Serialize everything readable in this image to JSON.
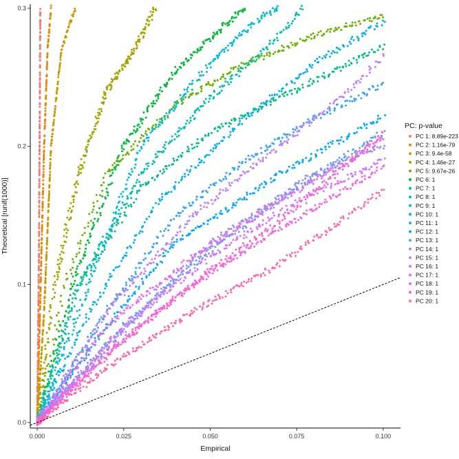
{
  "chart_data": {
    "type": "scatter",
    "xlabel": "Empirical",
    "ylabel": "Theoretical [runif(1000)]",
    "xlim": [
      -0.002,
      0.105
    ],
    "ylim": [
      -0.004,
      0.303
    ],
    "x_ticks": [
      0.0,
      0.025,
      0.05,
      0.075,
      0.1
    ],
    "x_tick_labels": [
      "0.000",
      "0.025",
      "0.050",
      "0.075",
      "0.100"
    ],
    "y_ticks": [
      0.0,
      0.1,
      0.2,
      0.3
    ],
    "y_tick_labels": [
      "0.0",
      "0.1",
      "0.2",
      "0.3"
    ],
    "grid": false,
    "legend_title": "PC: p-value",
    "legend_position": "right",
    "reference_line": {
      "style": "dashed",
      "color": "#000000",
      "slope": 1,
      "intercept": 0
    },
    "series": [
      {
        "name": "PC 1: 8.89e-223",
        "color": "#F8766D",
        "points": [
          [
            0.0,
            0.0
          ],
          [
            0.0005,
            0.12
          ],
          [
            0.0008,
            0.25
          ],
          [
            0.0009,
            0.3
          ]
        ]
      },
      {
        "name": "PC 2: 1.16e-79",
        "color": "#E58700",
        "points": [
          [
            0.0,
            0.0
          ],
          [
            0.001,
            0.1
          ],
          [
            0.002,
            0.2
          ],
          [
            0.003,
            0.27
          ],
          [
            0.004,
            0.3
          ]
        ]
      },
      {
        "name": "PC 3: 9.4e-58",
        "color": "#C99800",
        "points": [
          [
            0.0,
            0.0
          ],
          [
            0.002,
            0.08
          ],
          [
            0.004,
            0.2
          ],
          [
            0.007,
            0.27
          ],
          [
            0.011,
            0.3
          ]
        ]
      },
      {
        "name": "PC 4: 1.46e-27",
        "color": "#A3A500",
        "points": [
          [
            0.0,
            0.0
          ],
          [
            0.005,
            0.1
          ],
          [
            0.012,
            0.18
          ],
          [
            0.02,
            0.24
          ],
          [
            0.028,
            0.27
          ],
          [
            0.034,
            0.3
          ]
        ]
      },
      {
        "name": "PC 5: 9.67e-26",
        "color": "#6BB100",
        "points": [
          [
            0.0,
            0.0
          ],
          [
            0.008,
            0.1
          ],
          [
            0.02,
            0.18
          ],
          [
            0.04,
            0.23
          ],
          [
            0.06,
            0.26
          ],
          [
            0.08,
            0.28
          ],
          [
            0.1,
            0.295
          ]
        ]
      },
      {
        "name": "PC 6: 1",
        "color": "#00BA38",
        "points": [
          [
            0.0,
            0.0
          ],
          [
            0.01,
            0.1
          ],
          [
            0.025,
            0.2
          ],
          [
            0.04,
            0.255
          ],
          [
            0.055,
            0.29
          ],
          [
            0.06,
            0.3
          ]
        ]
      },
      {
        "name": "PC 7: 1",
        "color": "#00BF7D",
        "points": [
          [
            0.0,
            0.0
          ],
          [
            0.012,
            0.1
          ],
          [
            0.03,
            0.17
          ],
          [
            0.05,
            0.21
          ],
          [
            0.07,
            0.235
          ],
          [
            0.09,
            0.26
          ],
          [
            0.1,
            0.272
          ]
        ]
      },
      {
        "name": "PC 8: 1",
        "color": "#00C0AF",
        "points": [
          [
            0.0,
            0.0
          ],
          [
            0.012,
            0.1
          ],
          [
            0.03,
            0.18
          ],
          [
            0.05,
            0.235
          ],
          [
            0.07,
            0.28
          ],
          [
            0.077,
            0.3
          ]
        ]
      },
      {
        "name": "PC 9: 1",
        "color": "#00BCD8",
        "points": [
          [
            0.0,
            0.0
          ],
          [
            0.015,
            0.1
          ],
          [
            0.03,
            0.2
          ],
          [
            0.05,
            0.26
          ],
          [
            0.065,
            0.295
          ],
          [
            0.07,
            0.3
          ]
        ]
      },
      {
        "name": "PC 10: 1",
        "color": "#00B0F6",
        "points": [
          [
            0.0,
            0.0
          ],
          [
            0.015,
            0.08
          ],
          [
            0.035,
            0.16
          ],
          [
            0.06,
            0.22
          ],
          [
            0.08,
            0.26
          ],
          [
            0.1,
            0.29
          ]
        ]
      },
      {
        "name": "PC 11: 1",
        "color": "#35A2FF",
        "points": [
          [
            0.0,
            0.0
          ],
          [
            0.02,
            0.08
          ],
          [
            0.04,
            0.15
          ],
          [
            0.06,
            0.19
          ],
          [
            0.08,
            0.22
          ],
          [
            0.1,
            0.245
          ]
        ]
      },
      {
        "name": "PC 12: 1",
        "color": "#00A9FF",
        "points": [
          [
            0.0,
            0.0
          ],
          [
            0.02,
            0.07
          ],
          [
            0.04,
            0.13
          ],
          [
            0.07,
            0.18
          ],
          [
            0.1,
            0.222
          ]
        ]
      },
      {
        "name": "PC 13: 1",
        "color": "#619CFF",
        "points": [
          [
            0.0,
            0.0
          ],
          [
            0.025,
            0.07
          ],
          [
            0.05,
            0.125
          ],
          [
            0.075,
            0.17
          ],
          [
            0.1,
            0.21
          ]
        ]
      },
      {
        "name": "PC 14: 1",
        "color": "#9590FF",
        "points": [
          [
            0.0,
            0.0
          ],
          [
            0.03,
            0.08
          ],
          [
            0.05,
            0.13
          ],
          [
            0.08,
            0.18
          ],
          [
            0.1,
            0.2
          ]
        ]
      },
      {
        "name": "PC 15: 1",
        "color": "#B983FF",
        "points": [
          [
            0.0,
            0.0
          ],
          [
            0.02,
            0.08
          ],
          [
            0.045,
            0.15
          ],
          [
            0.07,
            0.2
          ],
          [
            0.09,
            0.24
          ],
          [
            0.1,
            0.265
          ]
        ]
      },
      {
        "name": "PC 16: 1",
        "color": "#D575FE",
        "points": [
          [
            0.0,
            0.0
          ],
          [
            0.025,
            0.07
          ],
          [
            0.05,
            0.12
          ],
          [
            0.075,
            0.16
          ],
          [
            0.1,
            0.19
          ]
        ]
      },
      {
        "name": "PC 17: 1",
        "color": "#E76BF3",
        "points": [
          [
            0.0,
            0.0
          ],
          [
            0.02,
            0.07
          ],
          [
            0.045,
            0.12
          ],
          [
            0.07,
            0.16
          ],
          [
            0.1,
            0.205
          ]
        ]
      },
      {
        "name": "PC 18: 1",
        "color": "#F564E3",
        "points": [
          [
            0.0,
            0.0
          ],
          [
            0.02,
            0.05
          ],
          [
            0.045,
            0.1
          ],
          [
            0.07,
            0.14
          ],
          [
            0.1,
            0.185
          ]
        ]
      },
      {
        "name": "PC 19: 1",
        "color": "#FD61D1",
        "points": [
          [
            0.0,
            0.0
          ],
          [
            0.025,
            0.06
          ],
          [
            0.05,
            0.11
          ],
          [
            0.075,
            0.155
          ],
          [
            0.1,
            0.21
          ]
        ]
      },
      {
        "name": "PC 20: 1",
        "color": "#FF67A4",
        "points": [
          [
            0.0,
            0.0
          ],
          [
            0.02,
            0.04
          ],
          [
            0.045,
            0.08
          ],
          [
            0.07,
            0.115
          ],
          [
            0.1,
            0.168
          ]
        ]
      }
    ]
  }
}
